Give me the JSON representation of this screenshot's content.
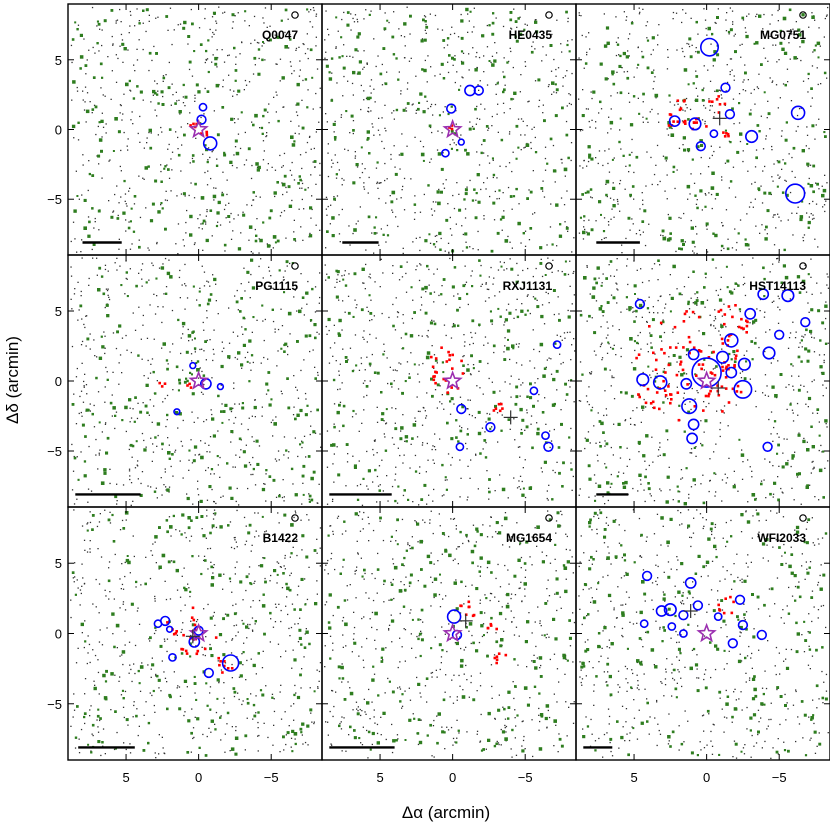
{
  "chart_data": {
    "type": "scatter",
    "layout": "3x3 grid",
    "xlabel": "Δα (arcmin)",
    "ylabel": "Δδ (arcmin)",
    "xlim": [
      9,
      -8.5
    ],
    "ylim": [
      -9,
      9
    ],
    "x_ticks": [
      5,
      0,
      -5
    ],
    "x_tick_labels": [
      "5",
      "0",
      "−5"
    ],
    "y_ticks": [
      5,
      0,
      -5
    ],
    "y_tick_labels": [
      "5",
      "0",
      "−5"
    ],
    "colors": {
      "galaxies": "#2e7d1f",
      "field": "#303030",
      "red_members": "#ff0000",
      "groups": "#0000ff",
      "lens_star": "#9b30b0",
      "cross": "#303030"
    },
    "legend_markers": [
      "scale bar",
      "circle"
    ],
    "panels": [
      {
        "name": "Q0047",
        "lens": [
          0,
          0
        ],
        "cross": null,
        "scalebar": [
          8,
          5.3
        ],
        "groups": [
          [
            -0.8,
            -1.0,
            0.45
          ],
          [
            -0.3,
            1.6,
            0.25
          ],
          [
            -0.2,
            0.7,
            0.3
          ]
        ],
        "red": [
          [
            0.3,
            0.2,
            0.3
          ],
          [
            -0.4,
            -0.3,
            0.3
          ]
        ]
      },
      {
        "name": "HE0435",
        "lens": [
          0,
          0
        ],
        "cross": null,
        "scalebar": [
          7.6,
          5.1
        ],
        "groups": [
          [
            -1.2,
            2.8,
            0.35
          ],
          [
            -1.8,
            2.8,
            0.3
          ],
          [
            0.1,
            1.5,
            0.3
          ],
          [
            0.5,
            -1.7,
            0.25
          ],
          [
            -0.6,
            -0.9,
            0.2
          ]
        ],
        "red": [
          [
            0.1,
            0.1,
            0.2
          ]
        ]
      },
      {
        "name": "MG0751",
        "lens": null,
        "cross": [
          -0.9,
          0.8
        ],
        "scalebar": [
          7.6,
          4.6
        ],
        "groups": [
          [
            -0.2,
            5.9,
            0.6
          ],
          [
            -1.3,
            3.0,
            0.3
          ],
          [
            0.8,
            0.4,
            0.4
          ],
          [
            2.2,
            0.6,
            0.35
          ],
          [
            -3.1,
            -0.5,
            0.4
          ],
          [
            -6.3,
            1.2,
            0.45
          ],
          [
            -6.1,
            -4.6,
            0.65
          ],
          [
            -1.6,
            1.1,
            0.3
          ],
          [
            0.4,
            -1.2,
            0.3
          ],
          [
            -0.5,
            -0.3,
            0.25
          ]
        ],
        "red": [
          [
            0.8,
            0.3,
            0.8
          ],
          [
            2.4,
            0.6,
            0.5
          ],
          [
            -0.7,
            1.8,
            0.6
          ],
          [
            1.8,
            1.8,
            0.4
          ],
          [
            -1.5,
            -0.3,
            0.4
          ]
        ]
      },
      {
        "name": "PG1115",
        "lens": [
          0,
          0
        ],
        "cross": null,
        "scalebar": [
          8.5,
          4.0
        ],
        "groups": [
          [
            -0.5,
            -0.2,
            0.35
          ],
          [
            0.4,
            1.1,
            0.2
          ],
          [
            1.5,
            -2.2,
            0.2
          ],
          [
            -1.5,
            -0.4,
            0.2
          ]
        ],
        "red": [
          [
            2.5,
            -0.2,
            0.25
          ],
          [
            0.6,
            -0.4,
            0.2
          ]
        ]
      },
      {
        "name": "RXJ1131",
        "lens": [
          0,
          0
        ],
        "cross": [
          -4.0,
          -2.6
        ],
        "scalebar": [
          8.5,
          4.2
        ],
        "groups": [
          [
            -0.6,
            -2.0,
            0.3
          ],
          [
            -2.6,
            -3.3,
            0.3
          ],
          [
            -0.5,
            -4.7,
            0.25
          ],
          [
            -6.6,
            -4.7,
            0.3
          ],
          [
            -6.4,
            -3.9,
            0.25
          ],
          [
            -5.6,
            -0.7,
            0.25
          ],
          [
            -7.2,
            2.6,
            0.25
          ]
        ],
        "red": [
          [
            0.5,
            0.5,
            1.9
          ],
          [
            -3.3,
            -2.0,
            0.5
          ]
        ]
      },
      {
        "name": "HST14113",
        "lens": [
          0,
          0
        ],
        "cross": [
          -0.8,
          -0.5
        ],
        "scalebar": [
          7.6,
          5.4
        ],
        "groups": [
          [
            0,
            0.6,
            1.0
          ],
          [
            -1.1,
            1.7,
            0.4
          ],
          [
            -1.7,
            2.9,
            0.45
          ],
          [
            -2.6,
            1.2,
            0.4
          ],
          [
            -3.0,
            4.8,
            0.35
          ],
          [
            -4.3,
            2.0,
            0.4
          ],
          [
            -5.0,
            3.3,
            0.3
          ],
          [
            -6.8,
            4.2,
            0.3
          ],
          [
            -5.6,
            6.1,
            0.4
          ],
          [
            -3.9,
            6.2,
            0.35
          ],
          [
            4.4,
            0.1,
            0.4
          ],
          [
            3.2,
            -0.1,
            0.45
          ],
          [
            1.2,
            -1.8,
            0.5
          ],
          [
            0.9,
            -3.1,
            0.35
          ],
          [
            1.0,
            -4.1,
            0.35
          ],
          [
            -2.5,
            -0.6,
            0.6
          ],
          [
            -4.2,
            -4.7,
            0.3
          ],
          [
            0.9,
            1.9,
            0.35
          ],
          [
            1.4,
            -0.2,
            0.35
          ],
          [
            -1.7,
            0.6,
            0.35
          ],
          [
            4.6,
            5.5,
            0.3
          ]
        ],
        "red": [
          [
            0.2,
            0.7,
            2.9
          ],
          [
            1.2,
            1.0,
            4.0
          ],
          [
            -2.0,
            4.5,
            1.3
          ],
          [
            3.6,
            -1.2,
            1.2
          ]
        ]
      },
      {
        "name": "B1422",
        "lens": [
          0,
          0
        ],
        "cross": [
          0.4,
          -0.2
        ],
        "scalebar": [
          8.3,
          4.4
        ],
        "groups": [
          [
            -2.2,
            -2.1,
            0.55
          ],
          [
            2.3,
            0.9,
            0.3
          ],
          [
            2.8,
            0.7,
            0.25
          ],
          [
            2.0,
            0.3,
            0.2
          ],
          [
            0.3,
            -0.6,
            0.35
          ],
          [
            -0.7,
            -2.8,
            0.3
          ],
          [
            1.8,
            -1.7,
            0.25
          ],
          [
            0.0,
            0.2,
            0.3
          ]
        ],
        "red": [
          [
            0.5,
            0.0,
            1.9
          ],
          [
            -1.7,
            -2.3,
            0.7
          ]
        ]
      },
      {
        "name": "MG1654",
        "lens": [
          0,
          0
        ],
        "cross": [
          -0.9,
          0.9
        ],
        "scalebar": [
          8.5,
          4.0
        ],
        "groups": [
          [
            -0.1,
            1.2,
            0.45
          ],
          [
            -0.3,
            -0.1,
            0.3
          ]
        ],
        "red": [
          [
            -1.2,
            1.9,
            0.7
          ],
          [
            -3.3,
            -1.8,
            0.5
          ],
          [
            -2.8,
            0.5,
            0.4
          ]
        ]
      },
      {
        "name": "WFI2033",
        "lens": [
          0,
          0
        ],
        "cross": [
          1.1,
          1.6
        ],
        "scalebar": [
          8.5,
          6.5
        ],
        "groups": [
          [
            4.1,
            4.1,
            0.3
          ],
          [
            1.1,
            3.6,
            0.35
          ],
          [
            2.5,
            1.7,
            0.4
          ],
          [
            3.1,
            1.6,
            0.35
          ],
          [
            1.6,
            1.3,
            0.3
          ],
          [
            -2.3,
            2.4,
            0.3
          ],
          [
            -2.5,
            0.6,
            0.3
          ],
          [
            -3.8,
            -0.1,
            0.3
          ],
          [
            1.6,
            0.0,
            0.25
          ],
          [
            -1.8,
            -0.7,
            0.3
          ],
          [
            2.4,
            0.5,
            0.25
          ],
          [
            0.6,
            2.0,
            0.3
          ],
          [
            -0.8,
            1.2,
            0.25
          ],
          [
            4.3,
            0.7,
            0.25
          ]
        ],
        "red": [
          [
            -1.3,
            2.0,
            0.7
          ]
        ]
      }
    ]
  }
}
